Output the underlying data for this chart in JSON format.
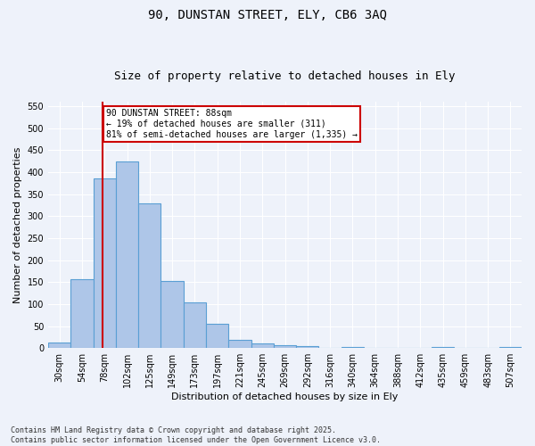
{
  "title_line1": "90, DUNSTAN STREET, ELY, CB6 3AQ",
  "title_line2": "Size of property relative to detached houses in Ely",
  "xlabel": "Distribution of detached houses by size in Ely",
  "ylabel": "Number of detached properties",
  "categories": [
    "30sqm",
    "54sqm",
    "78sqm",
    "102sqm",
    "125sqm",
    "149sqm",
    "173sqm",
    "197sqm",
    "221sqm",
    "245sqm",
    "269sqm",
    "292sqm",
    "316sqm",
    "340sqm",
    "364sqm",
    "388sqm",
    "412sqm",
    "435sqm",
    "459sqm",
    "483sqm",
    "507sqm"
  ],
  "values": [
    13,
    157,
    385,
    425,
    328,
    152,
    103,
    55,
    19,
    10,
    6,
    4,
    0,
    2,
    0,
    0,
    0,
    3,
    0,
    0,
    2
  ],
  "bar_color": "#aec6e8",
  "bar_edge_color": "#5a9fd4",
  "background_color": "#eef2fa",
  "grid_color": "#ffffff",
  "property_label": "90 DUNSTAN STREET: 88sqm",
  "annotation_line1": "← 19% of detached houses are smaller (311)",
  "annotation_line2": "81% of semi-detached houses are larger (1,335) →",
  "vline_color": "#cc0000",
  "annotation_box_color": "#cc0000",
  "ylim": [
    0,
    560
  ],
  "yticks": [
    0,
    50,
    100,
    150,
    200,
    250,
    300,
    350,
    400,
    450,
    500,
    550
  ],
  "footnote": "Contains HM Land Registry data © Crown copyright and database right 2025.\nContains public sector information licensed under the Open Government Licence v3.0.",
  "title_fontsize": 10,
  "subtitle_fontsize": 9,
  "tick_fontsize": 7,
  "ylabel_fontsize": 8,
  "xlabel_fontsize": 8,
  "annotation_fontsize": 7,
  "footnote_fontsize": 6
}
